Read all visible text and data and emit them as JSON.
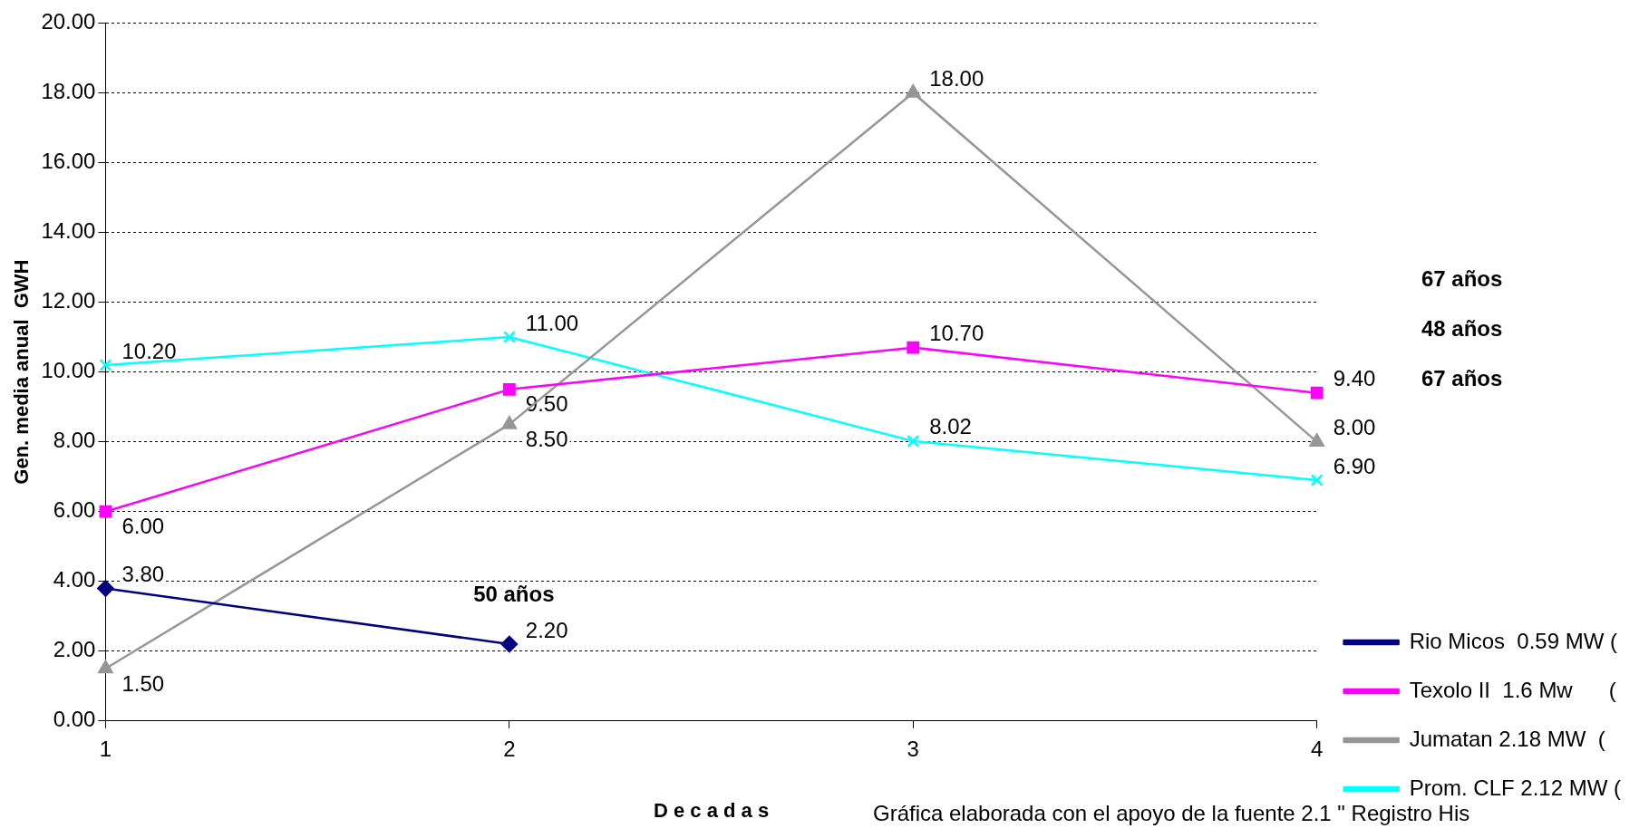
{
  "chart_data": {
    "type": "line",
    "xlabel": "D e c a d a s",
    "ylabel": "Gen. media anual  GWH",
    "x": [
      1,
      2,
      3,
      4
    ],
    "xlim": [
      1,
      4
    ],
    "xticks": [
      1,
      2,
      3,
      4
    ],
    "ylim": [
      0,
      20
    ],
    "yticks": [
      {
        "value": 0,
        "label": "0.00"
      },
      {
        "value": 2,
        "label": "2.00"
      },
      {
        "value": 4,
        "label": "4.00"
      },
      {
        "value": 6,
        "label": "6.00"
      },
      {
        "value": 8,
        "label": "8.00"
      },
      {
        "value": 10,
        "label": "10.00"
      },
      {
        "value": 12,
        "label": "12.00"
      },
      {
        "value": 14,
        "label": "14.00"
      },
      {
        "value": 16,
        "label": "16.00"
      },
      {
        "value": 18,
        "label": "18.00"
      },
      {
        "value": 20,
        "label": "20.00"
      }
    ],
    "grid": "y",
    "legend": "bottom right",
    "series": [
      {
        "name": "Rio Micos  0.59 MW (",
        "color": "#000080",
        "marker": "diamond",
        "values": [
          3.8,
          2.2,
          null,
          null
        ],
        "value_labels": [
          "3.80",
          "2.20",
          null,
          null
        ]
      },
      {
        "name": "Texolo II  1.6 Mw      (",
        "color": "#ff00ff",
        "marker": "square",
        "values": [
          6.0,
          9.5,
          10.7,
          9.4
        ],
        "value_labels": [
          "6.00",
          "9.50",
          "10.70",
          "9.40"
        ]
      },
      {
        "name": "Jumatan 2.18 MW  (",
        "color": "#969696",
        "marker": "triangle",
        "values": [
          1.5,
          8.5,
          18.0,
          8.0
        ],
        "value_labels": [
          "1.50",
          "8.50",
          "18.00",
          "8.00"
        ]
      },
      {
        "name": "Prom. CLF 2.12 MW (",
        "color": "#00ffff",
        "marker": "cross",
        "values": [
          10.2,
          11.0,
          8.02,
          6.9
        ],
        "value_labels": [
          "10.20",
          "11.00",
          "8.02",
          "6.90"
        ]
      }
    ],
    "annotations": [
      "67 años",
      "48 años",
      "67 años",
      "50 años",
      "Gráfica elaborada con el apoyo de la fuente 2.1 \" Registro His"
    ]
  }
}
